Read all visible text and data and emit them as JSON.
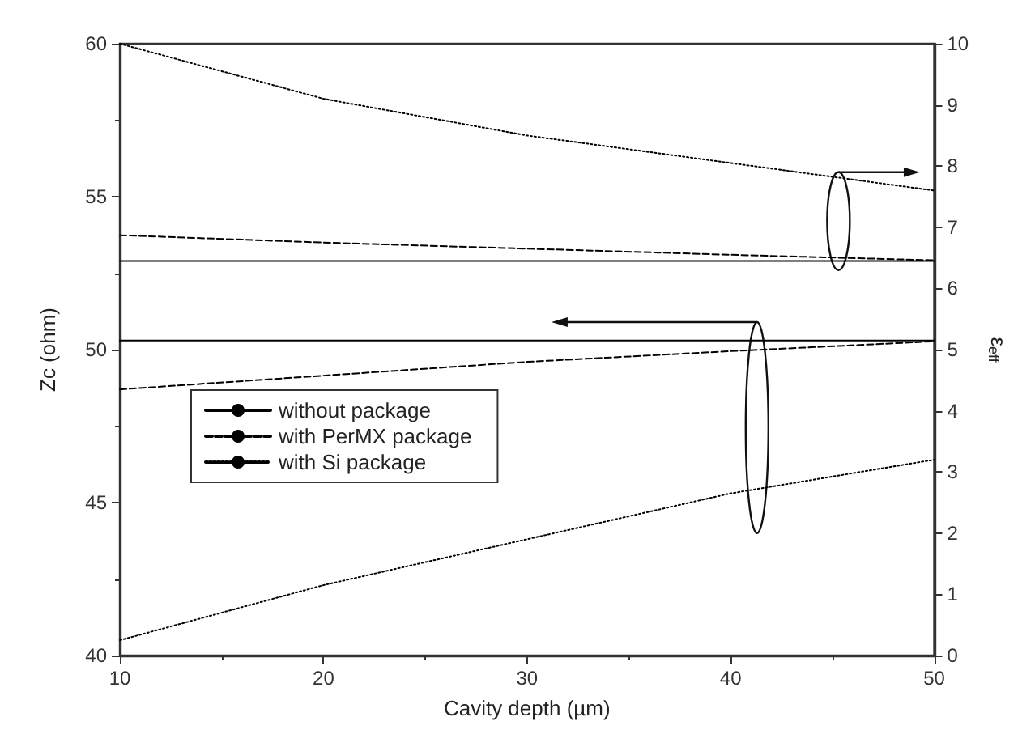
{
  "chart_data": {
    "type": "line",
    "xlabel": "Cavity depth (µm)",
    "ylabel": "Zc (ohm)",
    "y2label": "ε$_{eff}$",
    "x": [
      10,
      20,
      30,
      40,
      50
    ],
    "xlim": [
      10,
      50
    ],
    "xticks": [
      10,
      20,
      30,
      40,
      50
    ],
    "ylim": [
      40,
      60
    ],
    "yticks": [
      40,
      45,
      50,
      55,
      60
    ],
    "y2lim": [
      0,
      10
    ],
    "y2ticks": [
      0,
      1,
      2,
      3,
      4,
      5,
      6,
      7,
      8,
      9,
      10
    ],
    "grid": false,
    "legend": "left",
    "marker": "none",
    "series": [
      {
        "name": "without package",
        "color": "#000000",
        "line_style": "solid",
        "values": [
          50.3,
          50.3,
          50.3,
          50.3,
          50.3
        ]
      },
      {
        "name": "with PerMX package",
        "color": "#000000",
        "line_style": "dashed",
        "values": [
          48.7,
          49.15,
          49.6,
          49.95,
          50.27
        ]
      },
      {
        "name": "with Si package",
        "color": "#000000",
        "line_style": "dotted",
        "values": [
          40.5,
          42.3,
          43.8,
          45.3,
          46.4
        ]
      },
      {
        "color": "#000000",
        "line_style": "solid",
        "axis": "y2",
        "values": [
          6.45,
          6.45,
          6.45,
          6.45,
          6.45
        ]
      },
      {
        "color": "#000000",
        "line_style": "dashed",
        "axis": "y2",
        "values": [
          6.87,
          6.75,
          6.65,
          6.55,
          6.46
        ]
      },
      {
        "color": "#000000",
        "line_style": "dotted",
        "axis": "y2",
        "values": [
          10.0,
          9.1,
          8.5,
          8.05,
          7.6
        ]
      }
    ]
  }
}
